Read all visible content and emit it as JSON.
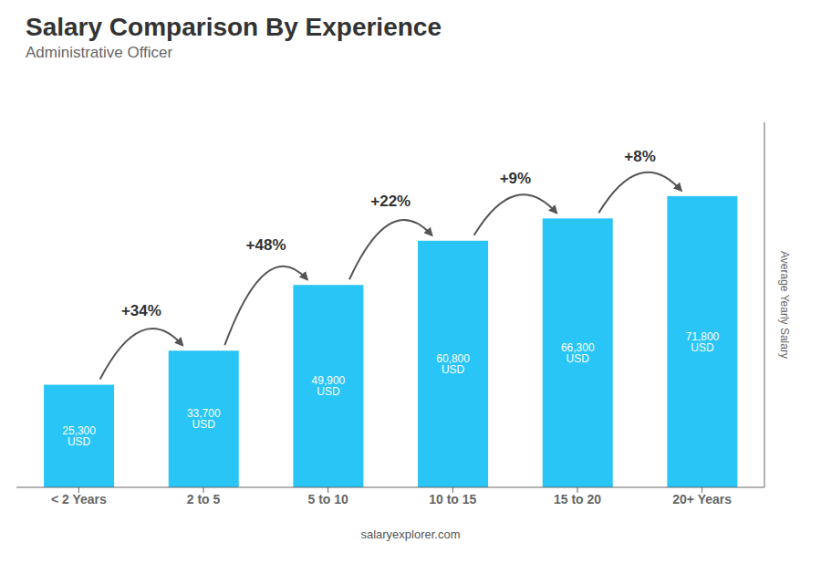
{
  "chart_data": {
    "type": "bar",
    "title": "Salary Comparison By Experience",
    "subtitle": "Administrative Officer",
    "ylabel": "Average Yearly Salary",
    "footer": "salaryexplorer.com",
    "categories": [
      "< 2 Years",
      "2 to 5",
      "5 to 10",
      "10 to 15",
      "15 to 20",
      "20+ Years"
    ],
    "values": [
      25300,
      33700,
      49900,
      60800,
      66300,
      71800
    ],
    "value_labels": [
      "25,300 USD",
      "33,700 USD",
      "49,900 USD",
      "60,800 USD",
      "66,300 USD",
      "71,800 USD"
    ],
    "data_labels": true,
    "annotations": [
      null,
      "+34%",
      "+48%",
      "+22%",
      "+9%",
      "+8%"
    ],
    "color": "#29C5F6",
    "ylim": [
      0,
      90000
    ],
    "tick_labels": "x",
    "grid": false
  }
}
